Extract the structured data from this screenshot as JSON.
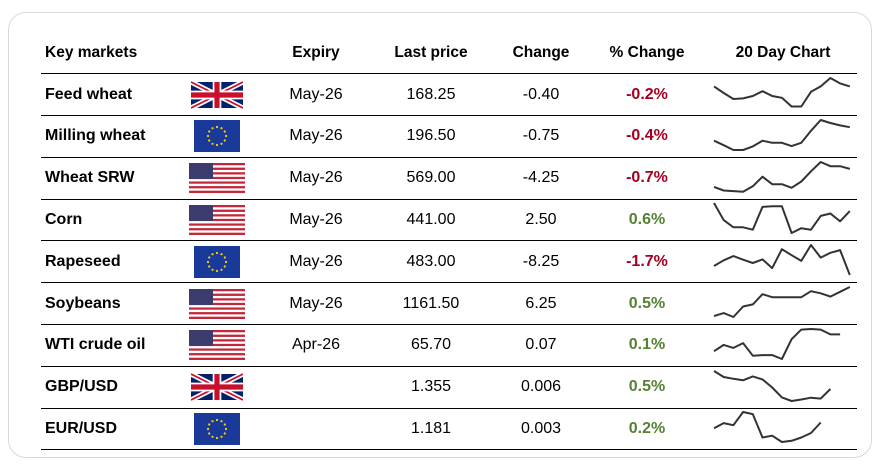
{
  "header": {
    "market": "Key markets",
    "expiry": "Expiry",
    "last_price": "Last price",
    "change": "Change",
    "pct_change": "% Change",
    "chart": "20 Day Chart"
  },
  "colors": {
    "negative": "#a50021",
    "positive": "#548235",
    "line": "#333333"
  },
  "rows": [
    {
      "name": "Feed wheat",
      "flag": "uk-flag",
      "expiry": "May-26",
      "last": "168.25",
      "change": "-0.40",
      "pct": "-0.2%",
      "dir": "neg",
      "spark": [
        72,
        50,
        30,
        32,
        40,
        56,
        40,
        34,
        5,
        5,
        54,
        72,
        100,
        82,
        72
      ]
    },
    {
      "name": "Milling wheat",
      "flag": "eu-flag",
      "expiry": "May-26",
      "last": "196.50",
      "change": "-0.75",
      "pct": "-0.4%",
      "dir": "neg",
      "spark": [
        31,
        16,
        0,
        0,
        12,
        31,
        24,
        24,
        13,
        24,
        64,
        100,
        90,
        82,
        76
      ]
    },
    {
      "name": "Wheat SRW",
      "flag": "us-flag",
      "expiry": "May-26",
      "last": "569.00",
      "change": "-4.25",
      "pct": "-0.7%",
      "dir": "neg",
      "spark": [
        17,
        5,
        3,
        1,
        19,
        51,
        26,
        26,
        14,
        35,
        69,
        100,
        86,
        86,
        77
      ]
    },
    {
      "name": "Corn",
      "flag": "us-flag",
      "expiry": "May-26",
      "last": "441.00",
      "change": "2.50",
      "pct": "0.6%",
      "dir": "pos",
      "spark": [
        100,
        43,
        19,
        19,
        11,
        87,
        89,
        89,
        0,
        16,
        11,
        57,
        65,
        39,
        73
      ]
    },
    {
      "name": "Rapeseed",
      "flag": "eu-flag",
      "expiry": "May-26",
      "last": "483.00",
      "change": "-8.25",
      "pct": "-1.7%",
      "dir": "neg",
      "spark": [
        30,
        49,
        63,
        51,
        40,
        52,
        23,
        86,
        66,
        47,
        100,
        58,
        74,
        83,
        0
      ]
    },
    {
      "name": "Soybeans",
      "flag": "us-flag",
      "expiry": "May-26",
      "last": "1161.50",
      "change": "6.25",
      "pct": "0.5%",
      "dir": "pos",
      "spark": [
        3,
        13,
        0,
        35,
        42,
        76,
        66,
        66,
        66,
        66,
        86,
        79,
        68,
        84,
        100
      ]
    },
    {
      "name": "WTI crude oil",
      "flag": "us-flag",
      "expiry": "Apr-26",
      "last": "65.70",
      "change": "0.07",
      "pct": "0.1%",
      "dir": "pos",
      "spark": [
        26,
        47,
        37,
        53,
        11,
        13,
        13,
        0,
        66,
        98,
        100,
        98,
        82,
        82
      ]
    },
    {
      "name": "GBP/USD",
      "flag": "uk-flag",
      "expiry": "",
      "last": "1.355",
      "change": "0.006",
      "pct": "0.5%",
      "dir": "pos",
      "spark": [
        100,
        80,
        74,
        69,
        82,
        72,
        45,
        12,
        0,
        5,
        11,
        8,
        40
      ]
    },
    {
      "name": "EUR/USD",
      "flag": "eu-flag",
      "expiry": "",
      "last": "1.181",
      "change": "0.003",
      "pct": "0.2%",
      "dir": "pos",
      "spark": [
        46,
        63,
        56,
        100,
        93,
        15,
        21,
        0,
        4,
        15,
        30,
        65
      ]
    }
  ]
}
